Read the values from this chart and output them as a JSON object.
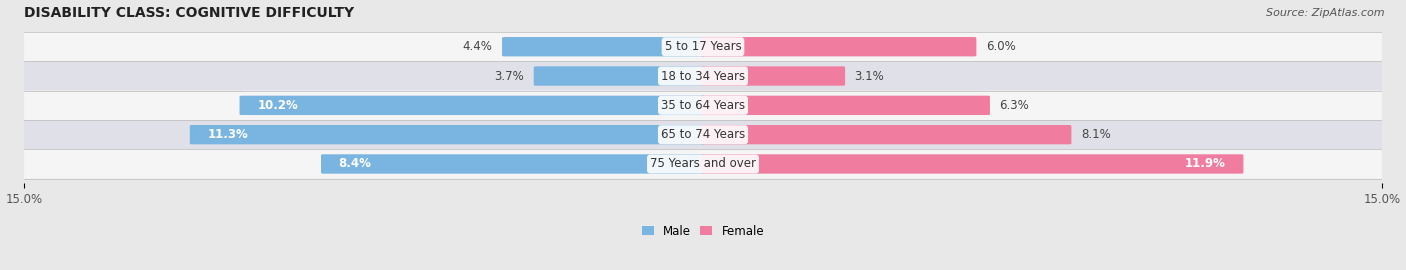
{
  "title": "DISABILITY CLASS: COGNITIVE DIFFICULTY",
  "source_text": "Source: ZipAtlas.com",
  "categories": [
    "5 to 17 Years",
    "18 to 34 Years",
    "35 to 64 Years",
    "65 to 74 Years",
    "75 Years and over"
  ],
  "male_values": [
    4.4,
    3.7,
    10.2,
    11.3,
    8.4
  ],
  "female_values": [
    6.0,
    3.1,
    6.3,
    8.1,
    11.9
  ],
  "max_val": 15.0,
  "male_color": "#7ab4e0",
  "female_color": "#f07ca0",
  "male_label": "Male",
  "female_label": "Female",
  "bg_color": "#e8e8e8",
  "row_colors": [
    "#f5f5f5",
    "#e0e0e8"
  ],
  "title_fontsize": 10,
  "label_fontsize": 8.5,
  "axis_fontsize": 8.5,
  "source_fontsize": 8
}
